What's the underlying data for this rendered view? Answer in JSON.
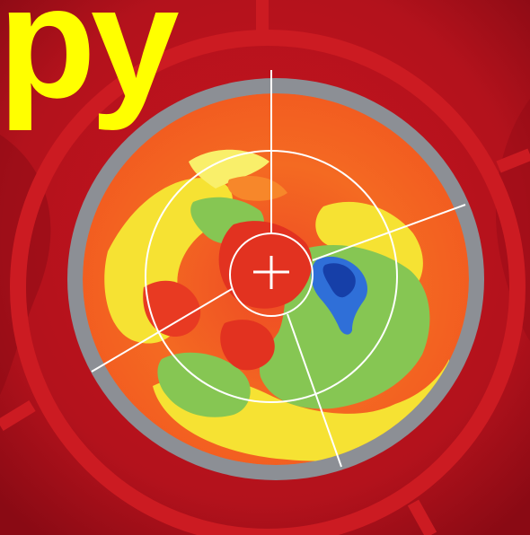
{
  "title": {
    "text": "py"
  },
  "colors": {
    "background": "#b3121c",
    "background_dark": "#8a0a14",
    "ring": "#cc1b22",
    "title": "#ffff00",
    "bezel": "#8c8f95",
    "map_red": "#e8321e",
    "map_orange": "#f46a22",
    "map_yellow": "#f6e233",
    "map_green": "#86c653",
    "map_blue": "#1d52c4",
    "crosshair": "#ffffff"
  }
}
